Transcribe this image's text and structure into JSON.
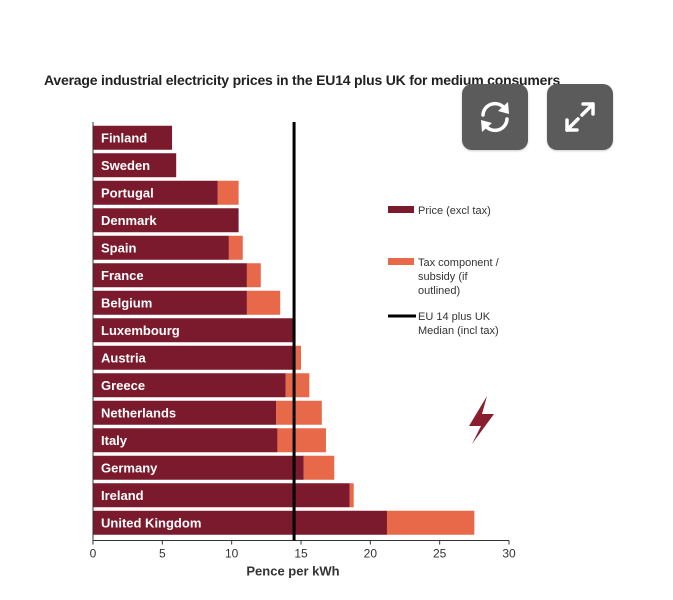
{
  "chart_data": {
    "type": "bar",
    "orientation": "horizontal",
    "stacked": true,
    "title": "Average industrial electricity prices in the EU14 plus UK for medium consumers",
    "xlabel": "Pence per kWh",
    "ylabel": "",
    "xlim": [
      0,
      30
    ],
    "xticks": [
      0,
      5,
      10,
      15,
      20,
      25,
      30
    ],
    "categories": [
      "Finland",
      "Sweden",
      "Portugal",
      "Denmark",
      "Spain",
      "France",
      "Belgium",
      "Luxembourg",
      "Austria",
      "Greece",
      "Netherlands",
      "Italy",
      "Germany",
      "Ireland",
      "United Kingdom"
    ],
    "series": [
      {
        "name": "Price (excl tax)",
        "color": "#7b1a2c",
        "values": [
          5.7,
          6.0,
          9.0,
          10.5,
          9.8,
          11.1,
          11.1,
          14.5,
          14.5,
          13.9,
          13.2,
          13.3,
          15.2,
          18.5,
          21.2
        ]
      },
      {
        "name": "Tax component / subsidy (if outlined)",
        "color": "#e8684a",
        "values": [
          0.0,
          0.0,
          1.5,
          0.0,
          1.0,
          1.0,
          2.4,
          0.0,
          0.5,
          1.7,
          3.3,
          3.5,
          2.2,
          0.3,
          6.3
        ]
      }
    ],
    "median": {
      "name": "EU 14 plus UK Median (incl tax)",
      "value": 14.5,
      "color": "#000000"
    },
    "legend": {
      "placement": "right",
      "items": [
        {
          "lines": [
            "Price (excl tax)"
          ],
          "color": "#7b1a2c",
          "kind": "box"
        },
        {
          "lines": [
            "Tax component /",
            "subsidy (if",
            "outlined)"
          ],
          "color": "#e8684a",
          "kind": "box"
        },
        {
          "lines": [
            "EU 14 plus UK",
            "Median (incl tax)"
          ],
          "color": "#000000",
          "kind": "line"
        }
      ]
    },
    "grid": false
  },
  "controls": {
    "refresh_icon": "refresh-icon",
    "expand_icon": "expand-icon",
    "button_color": "#5b5b5b"
  },
  "decor": {
    "lightning_icon": "lightning-icon",
    "lightning_color": "#8b1e2e"
  }
}
